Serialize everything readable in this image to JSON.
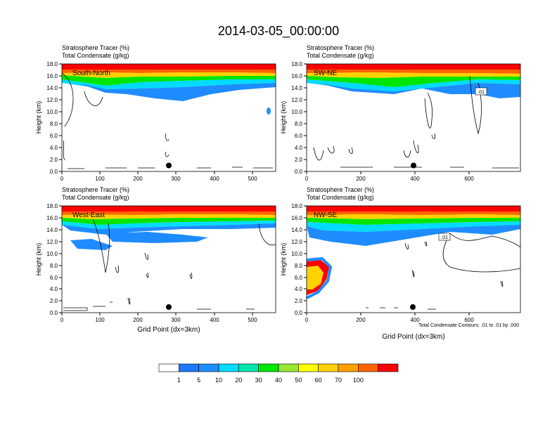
{
  "title": "2014-03-05_00:00:00",
  "footer_note": "Total Condensate Contours: .01 to .01 by .000",
  "colorbar": {
    "colors": [
      "#ffffff",
      "#1e78ff",
      "#1e8cff",
      "#00dcff",
      "#00e6aa",
      "#00e600",
      "#96e632",
      "#ffff00",
      "#ffd200",
      "#ffa000",
      "#ff6400",
      "#ff0000"
    ],
    "labels": [
      "1",
      "5",
      "10",
      "20",
      "30",
      "40",
      "50",
      "60",
      "70",
      "100"
    ]
  },
  "chart_data": [
    {
      "type": "heatmap",
      "panel": "South-North",
      "header_line1": "Stratosphere Tracer   (%)",
      "header_line2": "Total Condensate   (g/kg)",
      "ylabel": "Height (km)",
      "xlabel": "",
      "xlim": [
        0,
        560
      ],
      "ylim": [
        0,
        18
      ],
      "xticks": [
        "0",
        "100",
        "200",
        "300",
        "400",
        "500"
      ],
      "yticks": [
        "0.0",
        "2.0",
        "4.0",
        "6.0",
        "8.0",
        "10.0",
        "12.0",
        "14.0",
        "16.0",
        "18.0"
      ],
      "contour_label": "",
      "marker": {
        "x": 280,
        "y": 1.0
      }
    },
    {
      "type": "heatmap",
      "panel": "SW-NE",
      "header_line1": "Stratosphere Tracer   (%)",
      "header_line2": "Total Condensate   (g/kg)",
      "ylabel": "Height (km)",
      "xlabel": "",
      "xlim": [
        0,
        790
      ],
      "ylim": [
        0,
        18
      ],
      "xticks": [
        "0",
        "200",
        "400",
        "600"
      ],
      "yticks": [
        "0.0",
        "2.0",
        "4.0",
        "6.0",
        "8.0",
        "10.0",
        "12.0",
        "14.0",
        "16.0",
        "18.0"
      ],
      "contour_label": ".01",
      "marker": {
        "x": 395,
        "y": 1.0
      }
    },
    {
      "type": "heatmap",
      "panel": "West-East",
      "header_line1": "Stratosphere Tracer   (%)",
      "header_line2": "Total Condensate   (g/kg)",
      "ylabel": "Height (km)",
      "xlabel": "Grid Point (dx=3km)",
      "xlim": [
        0,
        560
      ],
      "ylim": [
        0,
        18
      ],
      "xticks": [
        "0",
        "100",
        "200",
        "300",
        "400",
        "500"
      ],
      "yticks": [
        "0.0",
        "2.0",
        "4.0",
        "6.0",
        "8.0",
        "10.0",
        "12.0",
        "14.0",
        "16.0",
        "18.0"
      ],
      "contour_label": "",
      "marker": {
        "x": 280,
        "y": 1.0
      }
    },
    {
      "type": "heatmap",
      "panel": "NW-SE",
      "header_line1": "Stratosphere Tracer   (%)",
      "header_line2": "Total Condensate   (g/kg)",
      "ylabel": "Height (km)",
      "xlabel": "Grid Point (dx=3km)",
      "xlim": [
        0,
        790
      ],
      "ylim": [
        0,
        18
      ],
      "xticks": [
        "0",
        "200",
        "400",
        "600"
      ],
      "yticks": [
        "0.0",
        "2.0",
        "4.0",
        "6.0",
        "8.0",
        "10.0",
        "12.0",
        "14.0",
        "16.0",
        "18.0"
      ],
      "contour_label": ".01",
      "marker": {
        "x": 395,
        "y": 1.0
      }
    }
  ]
}
